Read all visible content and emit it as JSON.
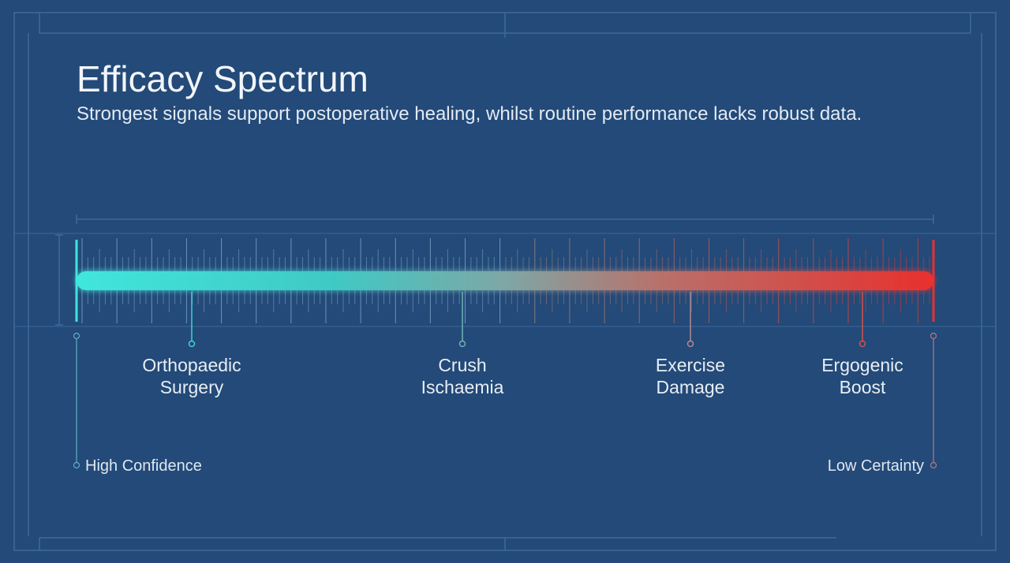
{
  "header": {
    "title": "Efficacy Spectrum",
    "subtitle": "Strongest signals support postoperative healing, whilst routine performance lacks robust data."
  },
  "spectrum": {
    "markers": [
      {
        "label": [
          "Orthopaedic",
          "Surgery"
        ]
      },
      {
        "label": [
          "Crush",
          "Ischaemia"
        ]
      },
      {
        "label": [
          "Exercise",
          "Damage"
        ]
      },
      {
        "label": [
          "Ergogenic",
          "Boost"
        ]
      }
    ],
    "start_label": "High Confidence",
    "end_label": "Low Certainty"
  }
}
